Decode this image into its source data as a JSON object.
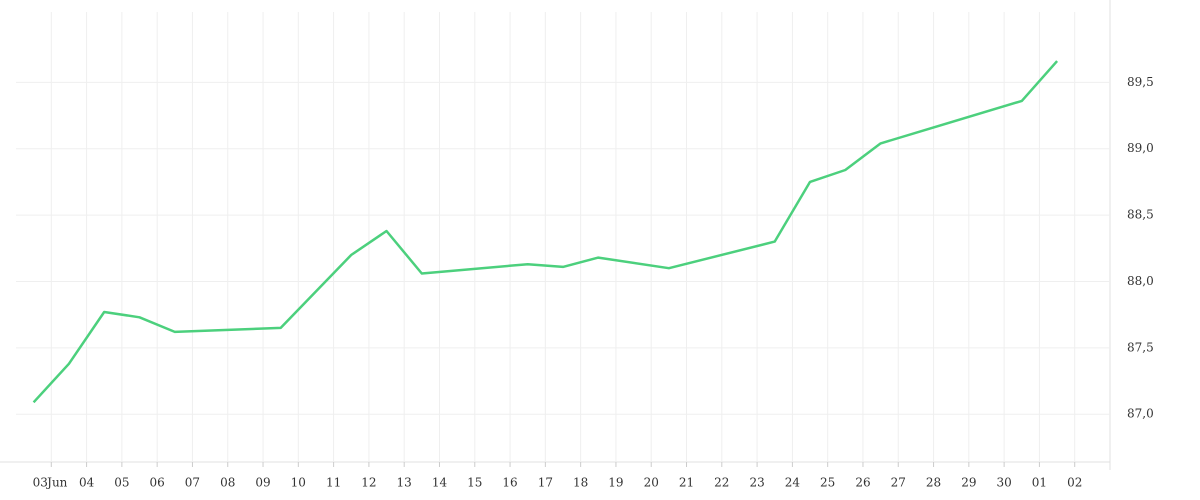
{
  "chart_data": {
    "type": "line",
    "month_label": "Jun",
    "x": [
      2.5,
      3.5,
      4.5,
      5.5,
      6.5,
      9.5,
      11.5,
      12.5,
      13.5,
      16.5,
      17.5,
      18.5,
      20.5,
      23.5,
      24.5,
      25.5,
      26.5,
      30.5,
      31.5
    ],
    "series": [
      {
        "color": "#4cd07d",
        "values": [
          87.09,
          87.38,
          87.77,
          87.73,
          87.62,
          87.65,
          88.2,
          88.38,
          88.06,
          88.13,
          88.11,
          88.18,
          88.1,
          88.3,
          88.75,
          88.84,
          89.04,
          89.36,
          89.66
        ]
      }
    ],
    "xlim": [
      2,
      33
    ],
    "xticks": [
      {
        "value": 3,
        "label": "03"
      },
      {
        "value": 4,
        "label": "04"
      },
      {
        "value": 5,
        "label": "05"
      },
      {
        "value": 6,
        "label": "06"
      },
      {
        "value": 7,
        "label": "07"
      },
      {
        "value": 8,
        "label": "08"
      },
      {
        "value": 9,
        "label": "09"
      },
      10,
      11,
      12,
      13,
      14,
      15,
      16,
      17,
      18,
      19,
      20,
      21,
      22,
      23,
      24,
      25,
      26,
      27,
      28,
      29,
      30,
      {
        "value": 31,
        "label": "01"
      },
      {
        "value": 32,
        "label": "02"
      }
    ],
    "ylim": [
      86.64,
      90.03
    ],
    "yticks": [
      {
        "value": 87.0,
        "label": "87,0"
      },
      {
        "value": 87.5,
        "label": "87,5"
      },
      {
        "value": 88.0,
        "label": "88,0"
      },
      {
        "value": 88.5,
        "label": "88,5"
      },
      {
        "value": 89.0,
        "label": "89,0"
      },
      {
        "value": 89.5,
        "label": "89,5"
      }
    ],
    "grid": true
  }
}
